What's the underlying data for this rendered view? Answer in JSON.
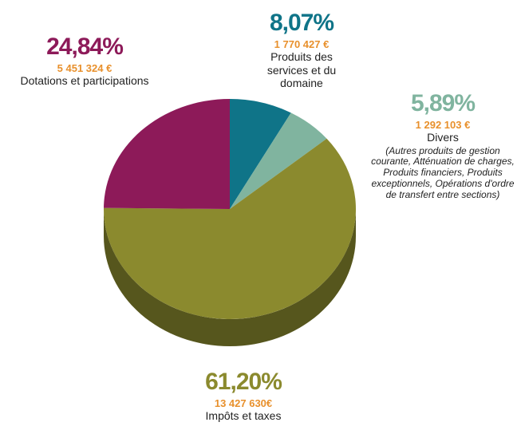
{
  "chart_data": {
    "type": "pie",
    "categories": [
      "Produits des services et du domaine",
      "Divers",
      "Impôts et taxes",
      "Dotations et participations"
    ],
    "values": [
      8.07,
      5.89,
      61.2,
      24.84
    ],
    "value_labels": [
      "8,07%",
      "5,89%",
      "61,20%",
      "24,84%"
    ],
    "amounts": [
      1770427,
      1292103,
      13427630,
      5451324
    ],
    "amount_labels": [
      "1 770 427 €",
      "1 292 103 €",
      "13 427 630€",
      "5 451 324 €"
    ],
    "colors": [
      "#0f7488",
      "#80b49f",
      "#8b8a2e",
      "#8d1a59"
    ],
    "annotation": "(Autres produits de gestion courante, Atténuation de charges, Produits financiers, Produits exceptionnels, Opérations d'ordre de transfert entre sections)"
  }
}
